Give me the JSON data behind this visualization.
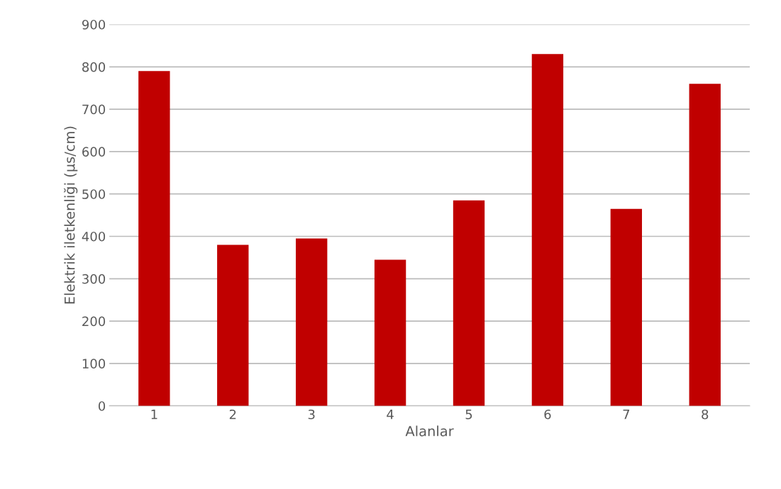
{
  "chart_data": {
    "type": "bar",
    "xlabel": "Alanlar",
    "ylabel": "Elektrik iletkenliği (µs/cm)",
    "categories": [
      "1",
      "2",
      "3",
      "4",
      "5",
      "6",
      "7",
      "8"
    ],
    "values": [
      790,
      380,
      395,
      345,
      485,
      830,
      465,
      760
    ],
    "color": "#c00000",
    "ylim": [
      0,
      900
    ],
    "yticks": [
      0,
      100,
      200,
      300,
      400,
      500,
      600,
      700,
      800,
      900
    ],
    "grid": "y"
  }
}
